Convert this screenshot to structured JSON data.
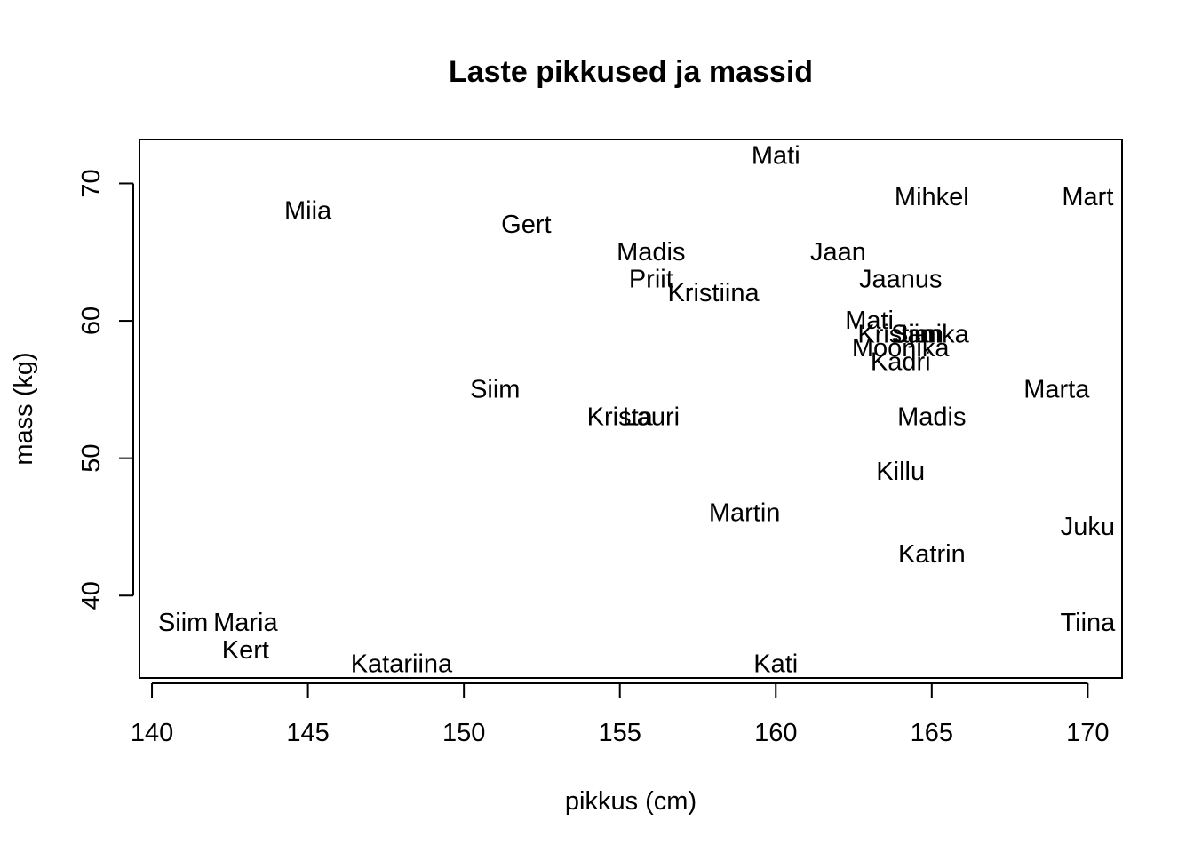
{
  "chart_data": {
    "type": "scatter",
    "title": "Laste pikkused ja massid",
    "xlabel": "pikkus (cm)",
    "ylabel": "mass (kg)",
    "xlim": [
      139.6,
      171.1
    ],
    "ylim": [
      34.0,
      73.2
    ],
    "xticks": [
      140,
      145,
      150,
      155,
      160,
      165,
      170
    ],
    "yticks": [
      40,
      50,
      60,
      70
    ],
    "grid": false,
    "legend": "none",
    "points": [
      {
        "label": "Mati",
        "x": 160,
        "y": 72
      },
      {
        "label": "Mihkel",
        "x": 165,
        "y": 69
      },
      {
        "label": "Mart",
        "x": 170,
        "y": 69
      },
      {
        "label": "Miia",
        "x": 145,
        "y": 68
      },
      {
        "label": "Gert",
        "x": 152,
        "y": 67
      },
      {
        "label": "Madis",
        "x": 156,
        "y": 65
      },
      {
        "label": "Jaan",
        "x": 162,
        "y": 65
      },
      {
        "label": "Priit",
        "x": 156,
        "y": 63
      },
      {
        "label": "Jaanus",
        "x": 164,
        "y": 63
      },
      {
        "label": "Kristiina",
        "x": 158,
        "y": 62
      },
      {
        "label": "Mati",
        "x": 163,
        "y": 60
      },
      {
        "label": "Kristjan",
        "x": 164,
        "y": 59
      },
      {
        "label": "Siim",
        "x": 164.5,
        "y": 59
      },
      {
        "label": "Janika",
        "x": 165,
        "y": 59
      },
      {
        "label": "Moonika",
        "x": 164,
        "y": 58
      },
      {
        "label": "Kadri",
        "x": 164,
        "y": 57
      },
      {
        "label": "Siim",
        "x": 151,
        "y": 55
      },
      {
        "label": "Marta",
        "x": 169,
        "y": 55
      },
      {
        "label": "Krista",
        "x": 155,
        "y": 53
      },
      {
        "label": "Lauri",
        "x": 156,
        "y": 53
      },
      {
        "label": "Madis",
        "x": 165,
        "y": 53
      },
      {
        "label": "Killu",
        "x": 164,
        "y": 49
      },
      {
        "label": "Martin",
        "x": 159,
        "y": 46
      },
      {
        "label": "Juku",
        "x": 170,
        "y": 45
      },
      {
        "label": "Katrin",
        "x": 165,
        "y": 43
      },
      {
        "label": "Siim",
        "x": 141,
        "y": 38
      },
      {
        "label": "Maria",
        "x": 143,
        "y": 38
      },
      {
        "label": "Tiina",
        "x": 170,
        "y": 38
      },
      {
        "label": "Kert",
        "x": 143,
        "y": 36
      },
      {
        "label": "Katariina",
        "x": 148,
        "y": 35
      },
      {
        "label": "Kati",
        "x": 160,
        "y": 35
      }
    ]
  }
}
